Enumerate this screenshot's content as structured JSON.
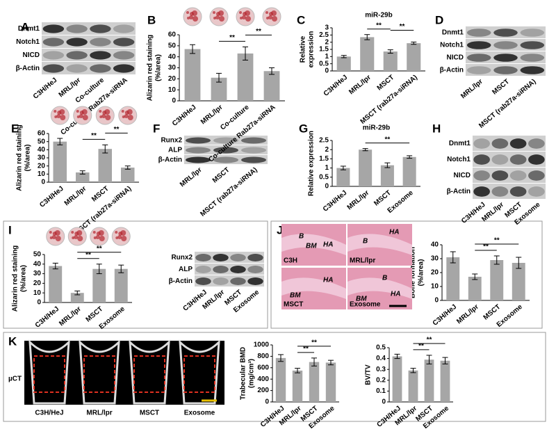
{
  "panel_letters": [
    "A",
    "B",
    "C",
    "D",
    "E",
    "F",
    "G",
    "H",
    "I",
    "J",
    "K"
  ],
  "chart_data": [
    {
      "type": "bar",
      "ylabel": [
        "Alizarin red staining",
        "(%/area)"
      ],
      "categories": [
        "C3H/HeJ",
        "MRL/lpr",
        "Co-culture",
        "Co-culture Rab27a-siRNA"
      ],
      "values": [
        47,
        21,
        43,
        27
      ],
      "errors": [
        4,
        4,
        6,
        3
      ],
      "color": "#a6a6a6",
      "ylim": [
        0,
        60
      ],
      "yticks": [
        0,
        10,
        20,
        30,
        40,
        50,
        60
      ],
      "significance": [
        "**",
        "**"
      ]
    },
    {
      "type": "bar",
      "title": "miR-29b",
      "ylabel": [
        "Relative",
        "expression"
      ],
      "categories": [
        "C3H/HeJ",
        "MRL/lpr",
        "MSCT",
        "MSCT (rab27a-siRNA)"
      ],
      "values": [
        1.0,
        2.35,
        1.35,
        1.93
      ],
      "errors": [
        0.08,
        0.18,
        0.12,
        0.08
      ],
      "color": "#a6a6a6",
      "ylim": [
        0,
        3
      ],
      "yticks": [
        0,
        0.5,
        1,
        1.5,
        2,
        2.5,
        3
      ],
      "significance": [
        "**",
        "**"
      ]
    },
    {
      "type": "bar",
      "ylabel": [
        "Alizarin red staining",
        "(%/area)"
      ],
      "categories": [
        "C3H/HeJ",
        "MRL/lpr",
        "MSCT",
        "MSCT (rab27a-siRNA)"
      ],
      "values": [
        50,
        12,
        41,
        18
      ],
      "errors": [
        4,
        2,
        5,
        2
      ],
      "color": "#a6a6a6",
      "ylim": [
        0,
        60
      ],
      "yticks": [
        0,
        10,
        20,
        30,
        40,
        50,
        60
      ],
      "significance": [
        "**",
        "**"
      ]
    },
    {
      "type": "bar",
      "title": "miR-29b",
      "ylabel": [
        "Relative expression"
      ],
      "categories": [
        "C3H/HeJ",
        "MRL/lpr",
        "MSCT",
        "Exosome"
      ],
      "values": [
        1.0,
        2.0,
        1.15,
        1.6
      ],
      "errors": [
        0.1,
        0.06,
        0.13,
        0.07
      ],
      "color": "#a6a6a6",
      "ylim": [
        0,
        2.5
      ],
      "yticks": [
        0,
        0.5,
        1,
        1.5,
        2,
        2.5
      ],
      "significance": [
        "**"
      ]
    },
    {
      "type": "bar",
      "ylabel": [
        "Alizarin red staining",
        "(%/area)"
      ],
      "categories": [
        "C3H/HeJ",
        "MRL/lpr",
        "MSCT",
        "Exosome"
      ],
      "values": [
        38,
        10,
        35,
        35
      ],
      "errors": [
        3,
        2,
        5,
        4
      ],
      "color": "#a6a6a6",
      "ylim": [
        0,
        50
      ],
      "yticks": [
        0,
        10,
        20,
        30,
        40,
        50
      ],
      "significance": [
        "**",
        "**"
      ]
    },
    {
      "type": "bar",
      "ylabel": [
        "Bone formation",
        "(%/area)"
      ],
      "categories": [
        "C3H/HeJ",
        "MRL/lpr",
        "MSCT",
        "Exosome"
      ],
      "values": [
        31,
        17,
        29,
        27
      ],
      "errors": [
        4,
        2,
        3,
        4
      ],
      "color": "#a6a6a6",
      "ylim": [
        0,
        40
      ],
      "yticks": [
        0,
        10,
        20,
        30,
        40
      ],
      "significance": [
        "**",
        "**"
      ]
    },
    {
      "type": "bar",
      "ylabel": [
        "Trabecular BMD",
        "(mg/cm³)"
      ],
      "categories": [
        "C3H/HeJ",
        "MRL/lpr",
        "MSCT",
        "Exosome"
      ],
      "values": [
        770,
        550,
        700,
        690
      ],
      "errors": [
        60,
        40,
        70,
        40
      ],
      "color": "#a6a6a6",
      "ylim": [
        0,
        1000
      ],
      "yticks": [
        0,
        200,
        400,
        600,
        800,
        1000
      ],
      "significance": [
        "**",
        "**"
      ]
    },
    {
      "type": "bar",
      "ylabel": [
        "BV/TV"
      ],
      "categories": [
        "C3H/HeJ",
        "MRL/lpr",
        "MSCT",
        "Exosome"
      ],
      "values": [
        0.42,
        0.29,
        0.39,
        0.38
      ],
      "errors": [
        0.02,
        0.02,
        0.04,
        0.03
      ],
      "color": "#a6a6a6",
      "ylim": [
        0,
        0.5
      ],
      "yticks": [
        0,
        0.1,
        0.2,
        0.3,
        0.4,
        0.5
      ],
      "significance": [
        "**",
        "**"
      ]
    }
  ],
  "blots": [
    {
      "rows": [
        "Dnmt1",
        "Notch1",
        "NICD",
        "β-Actin"
      ],
      "lanes": [
        "C3H/HeJ",
        "MRL/lpr",
        "Co-culture",
        "Co-culture Rab27a-siRNA"
      ]
    },
    {
      "rows": [
        "Dnmt1",
        "Notch1",
        "NICD",
        "β-Actin"
      ],
      "lanes": [
        "MRL/lpr",
        "MSCT",
        "MSCT (rab27a-siRNA)"
      ]
    },
    {
      "rows": [
        "Runx2",
        "ALP",
        "β-Actin"
      ],
      "lanes": [
        "MRL/lpr",
        "MSCT",
        "MSCT (rab27a-siRNA)"
      ]
    },
    {
      "rows": [
        "Dnmt1",
        "Notch1",
        "NICD",
        "β-Actin"
      ],
      "lanes": [
        "C3H/HeJ",
        "MRL/lpr",
        "MSCT",
        "Exosome"
      ]
    },
    {
      "rows": [
        "Runx2",
        "ALP",
        "β-Actin"
      ],
      "lanes": [
        "C3H/HeJ",
        "MRL/lpr",
        "MSCT",
        "Exosome"
      ]
    }
  ],
  "histology": {
    "tiles": [
      {
        "name": "C3H",
        "labels": [
          "B",
          "HA",
          "BM"
        ]
      },
      {
        "name": "MRL/lpr",
        "labels": [
          "HA",
          "B"
        ]
      },
      {
        "name": "MSCT",
        "labels": [
          "HA",
          "BM"
        ]
      },
      {
        "name": "Exosome",
        "labels": [
          "B",
          "HA",
          "BM"
        ]
      }
    ]
  },
  "micro_ct": {
    "label": "µCT",
    "images": [
      "C3H/HeJ",
      "MRL/lpr",
      "MSCT",
      "Exosome"
    ]
  }
}
